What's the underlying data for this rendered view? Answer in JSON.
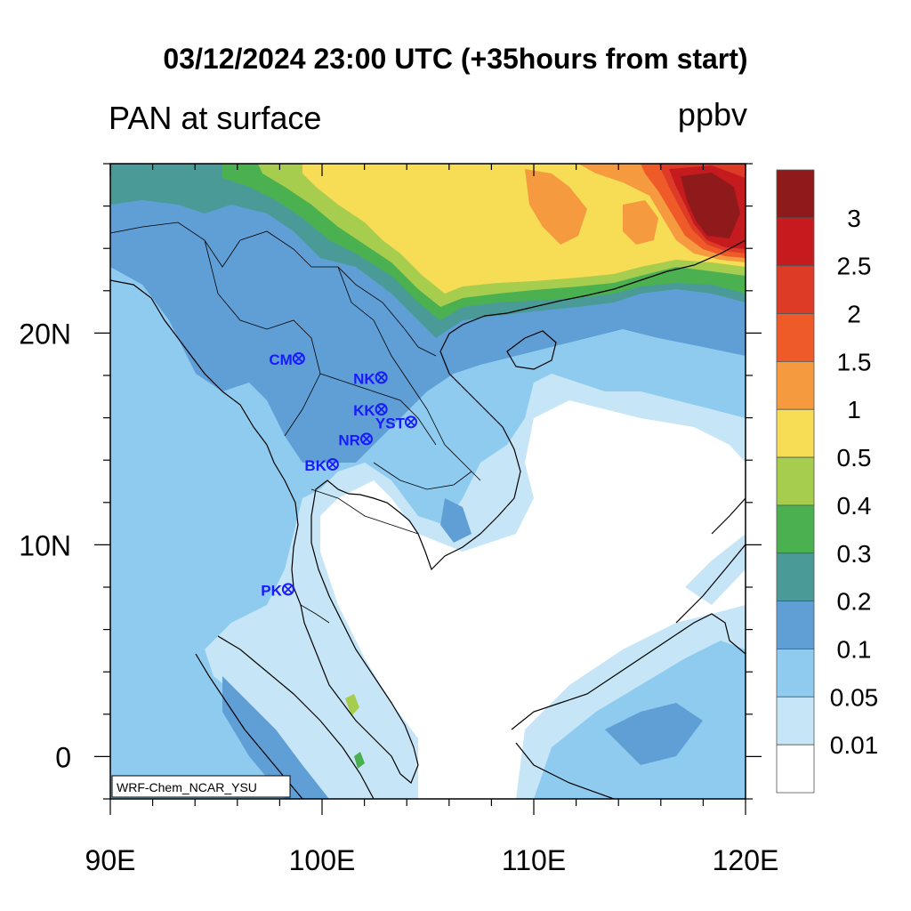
{
  "title": "03/12/2024 23:00 UTC (+35hours from start)",
  "variable_label": "PAN at surface",
  "units_label": "ppbv",
  "credit": "WRF-Chem_NCAR_YSU",
  "axes": {
    "lon_labels": [
      "90E",
      "100E",
      "110E",
      "120E"
    ],
    "lat_labels": [
      "20N",
      "10N",
      "0"
    ],
    "lon_range": [
      90,
      120
    ],
    "lat_range": [
      -2,
      28
    ]
  },
  "colorbar": {
    "levels": [
      "3",
      "2.5",
      "2",
      "1.5",
      "1",
      "0.5",
      "0.4",
      "0.3",
      "0.2",
      "0.1",
      "0.05",
      "0.01"
    ],
    "colors": [
      "#8f1a1c",
      "#c51b1e",
      "#de3b27",
      "#ee5b29",
      "#f59a3f",
      "#f7dc55",
      "#a6cd4e",
      "#4bb050",
      "#4a9b98",
      "#5f9fd6",
      "#8fcbee",
      "#c6e6f7",
      "#ffffff"
    ]
  },
  "stations": [
    {
      "name": "CM",
      "lon": 98.9,
      "lat": 18.8
    },
    {
      "name": "NK",
      "lon": 102.8,
      "lat": 17.9
    },
    {
      "name": "KK",
      "lon": 102.8,
      "lat": 16.4
    },
    {
      "name": "YST",
      "lon": 104.2,
      "lat": 15.8
    },
    {
      "name": "NR",
      "lon": 102.1,
      "lat": 15.0
    },
    {
      "name": "BK",
      "lon": 100.5,
      "lat": 13.8
    },
    {
      "name": "PK",
      "lon": 98.4,
      "lat": 7.9
    }
  ]
}
